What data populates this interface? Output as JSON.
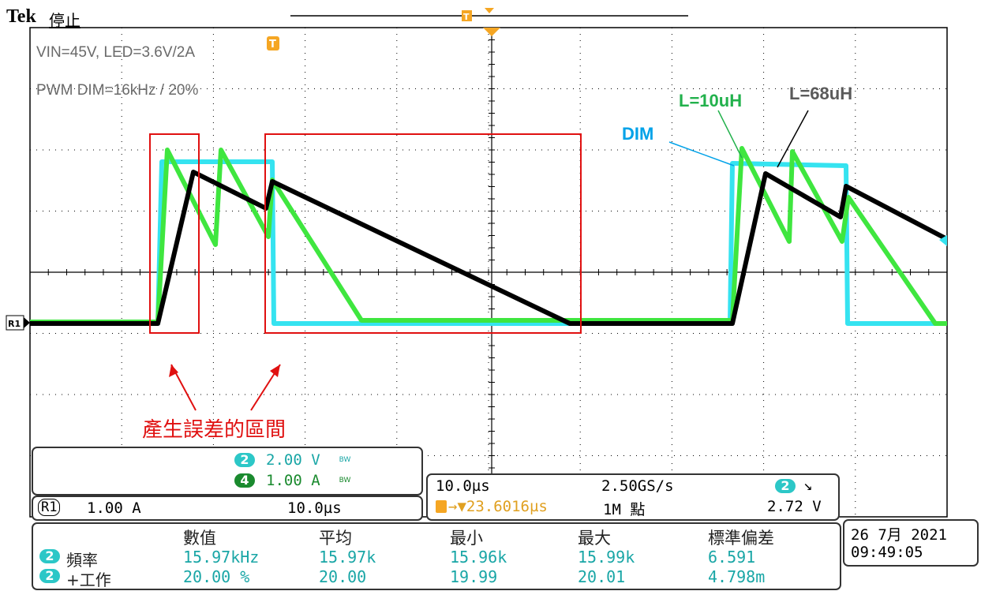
{
  "header": {
    "brand": "Tek",
    "state": "停止"
  },
  "annotations": {
    "conditions_line1": "VIN=45V, LED=3.6V/2A",
    "conditions_line2": "PWM DIM=16kHz / 20%",
    "label_l10": "L=10uH",
    "label_l68": "L=68uH",
    "label_dim": "DIM",
    "error_region": "產生誤差的區間",
    "colors": {
      "l10": "#22b14c",
      "l68": "#5a5a5a",
      "dim": "#00a2e8",
      "error": "#e01010"
    }
  },
  "markers": {
    "trigger": "T",
    "ref": "R1"
  },
  "channels": {
    "ch2": {
      "id": "2",
      "scale": "2.00 V",
      "bw": "BW"
    },
    "ch4": {
      "id": "4",
      "scale": "1.00 A",
      "bw": "BW"
    },
    "ref": {
      "id": "R1",
      "scale": "1.00 A",
      "time": "10.0µs"
    }
  },
  "timebase": {
    "horizontal": "10.0µs",
    "sample_rate": "2.50GS/s",
    "trig_delay": "→▼23.6016µs",
    "record": "1M 點",
    "trig_channel": "2",
    "trig_slope": "↘",
    "trig_level": "2.72 V"
  },
  "measurements": {
    "headers": [
      "數值",
      "平均",
      "最小",
      "最大",
      "標準偏差"
    ],
    "rows": [
      {
        "ch": "2",
        "name": "頻率",
        "values": [
          "15.97kHz",
          "15.97k",
          "15.96k",
          "15.99k",
          "6.591"
        ]
      },
      {
        "ch": "2",
        "name": "+工作",
        "values": [
          "20.00 %",
          "20.00",
          "19.99",
          "20.01",
          "4.798m"
        ]
      }
    ]
  },
  "datetime": {
    "date": "26 7月  2021",
    "time": "09:49:05"
  }
}
